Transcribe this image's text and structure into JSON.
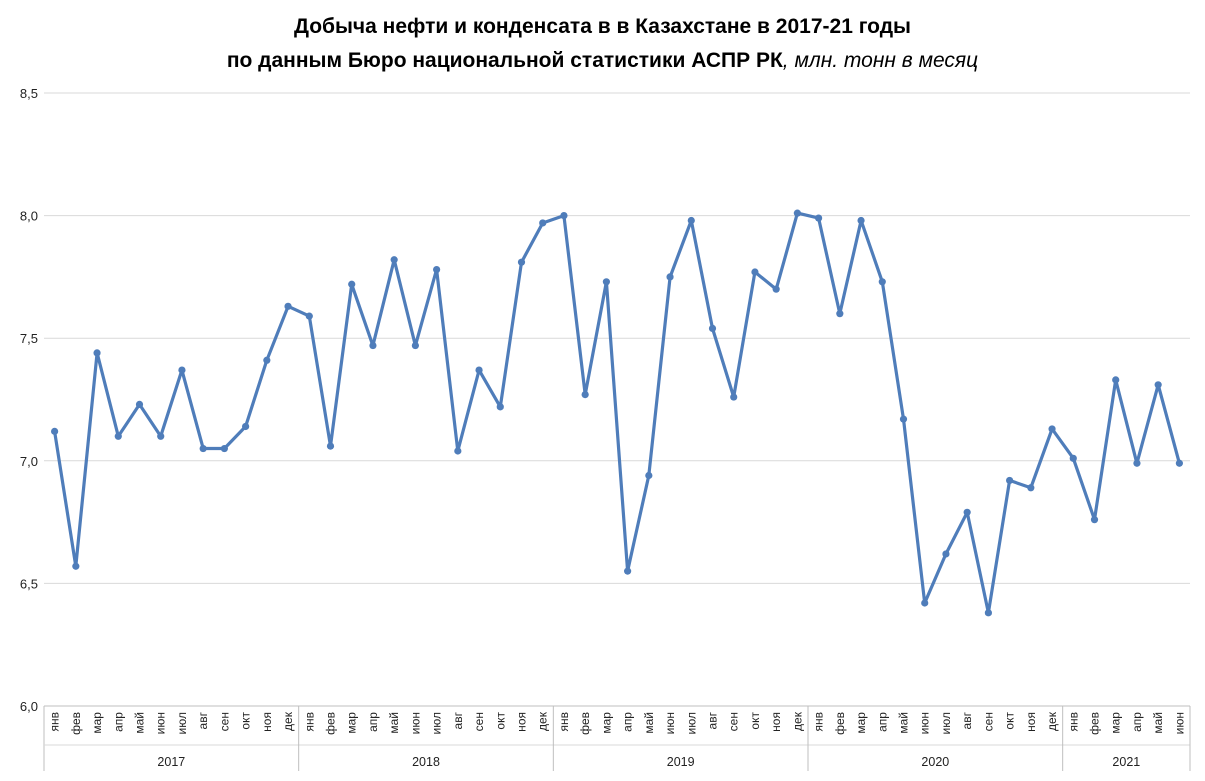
{
  "chart_data": {
    "type": "line",
    "title_line1": "Добыча нефти и конденсата в в Казахстане в 2017-21 годы",
    "title_line2": "по данным Бюро национальной статистики АСПР РК",
    "title_unit": ", млн. тонн в месяц",
    "ylim": [
      6.0,
      8.5
    ],
    "yticks": [
      "6,0",
      "6,5",
      "7,0",
      "7,5",
      "8,0",
      "8,5"
    ],
    "grid": true,
    "line_color": "#4F7DBA",
    "years": [
      {
        "label": "2017",
        "months": 12
      },
      {
        "label": "2018",
        "months": 12
      },
      {
        "label": "2019",
        "months": 12
      },
      {
        "label": "2020",
        "months": 12
      },
      {
        "label": "2021",
        "months": 6
      }
    ],
    "categories": [
      "янв",
      "фев",
      "мар",
      "апр",
      "май",
      "июн",
      "июл",
      "авг",
      "сен",
      "окт",
      "ноя",
      "дек",
      "янв",
      "фев",
      "мар",
      "апр",
      "май",
      "июн",
      "июл",
      "авг",
      "сен",
      "окт",
      "ноя",
      "дек",
      "янв",
      "фев",
      "мар",
      "апр",
      "май",
      "июн",
      "июл",
      "авг",
      "сен",
      "окт",
      "ноя",
      "дек",
      "янв",
      "фев",
      "мар",
      "апр",
      "май",
      "июн",
      "июл",
      "авг",
      "сен",
      "окт",
      "ноя",
      "дек",
      "янв",
      "фев",
      "мар",
      "апр",
      "май",
      "июн"
    ],
    "values": [
      7.12,
      6.57,
      7.44,
      7.1,
      7.23,
      7.1,
      7.37,
      7.05,
      7.05,
      7.14,
      7.41,
      7.63,
      7.59,
      7.06,
      7.72,
      7.47,
      7.82,
      7.47,
      7.78,
      7.04,
      7.37,
      7.22,
      7.81,
      7.97,
      8.0,
      7.27,
      7.73,
      6.55,
      6.94,
      7.75,
      7.98,
      7.54,
      7.26,
      7.77,
      7.7,
      8.01,
      7.99,
      7.6,
      7.98,
      7.73,
      7.17,
      6.42,
      6.62,
      6.79,
      6.38,
      6.92,
      6.89,
      7.13,
      7.01,
      6.76,
      7.33,
      6.99,
      7.31,
      6.99
    ]
  }
}
